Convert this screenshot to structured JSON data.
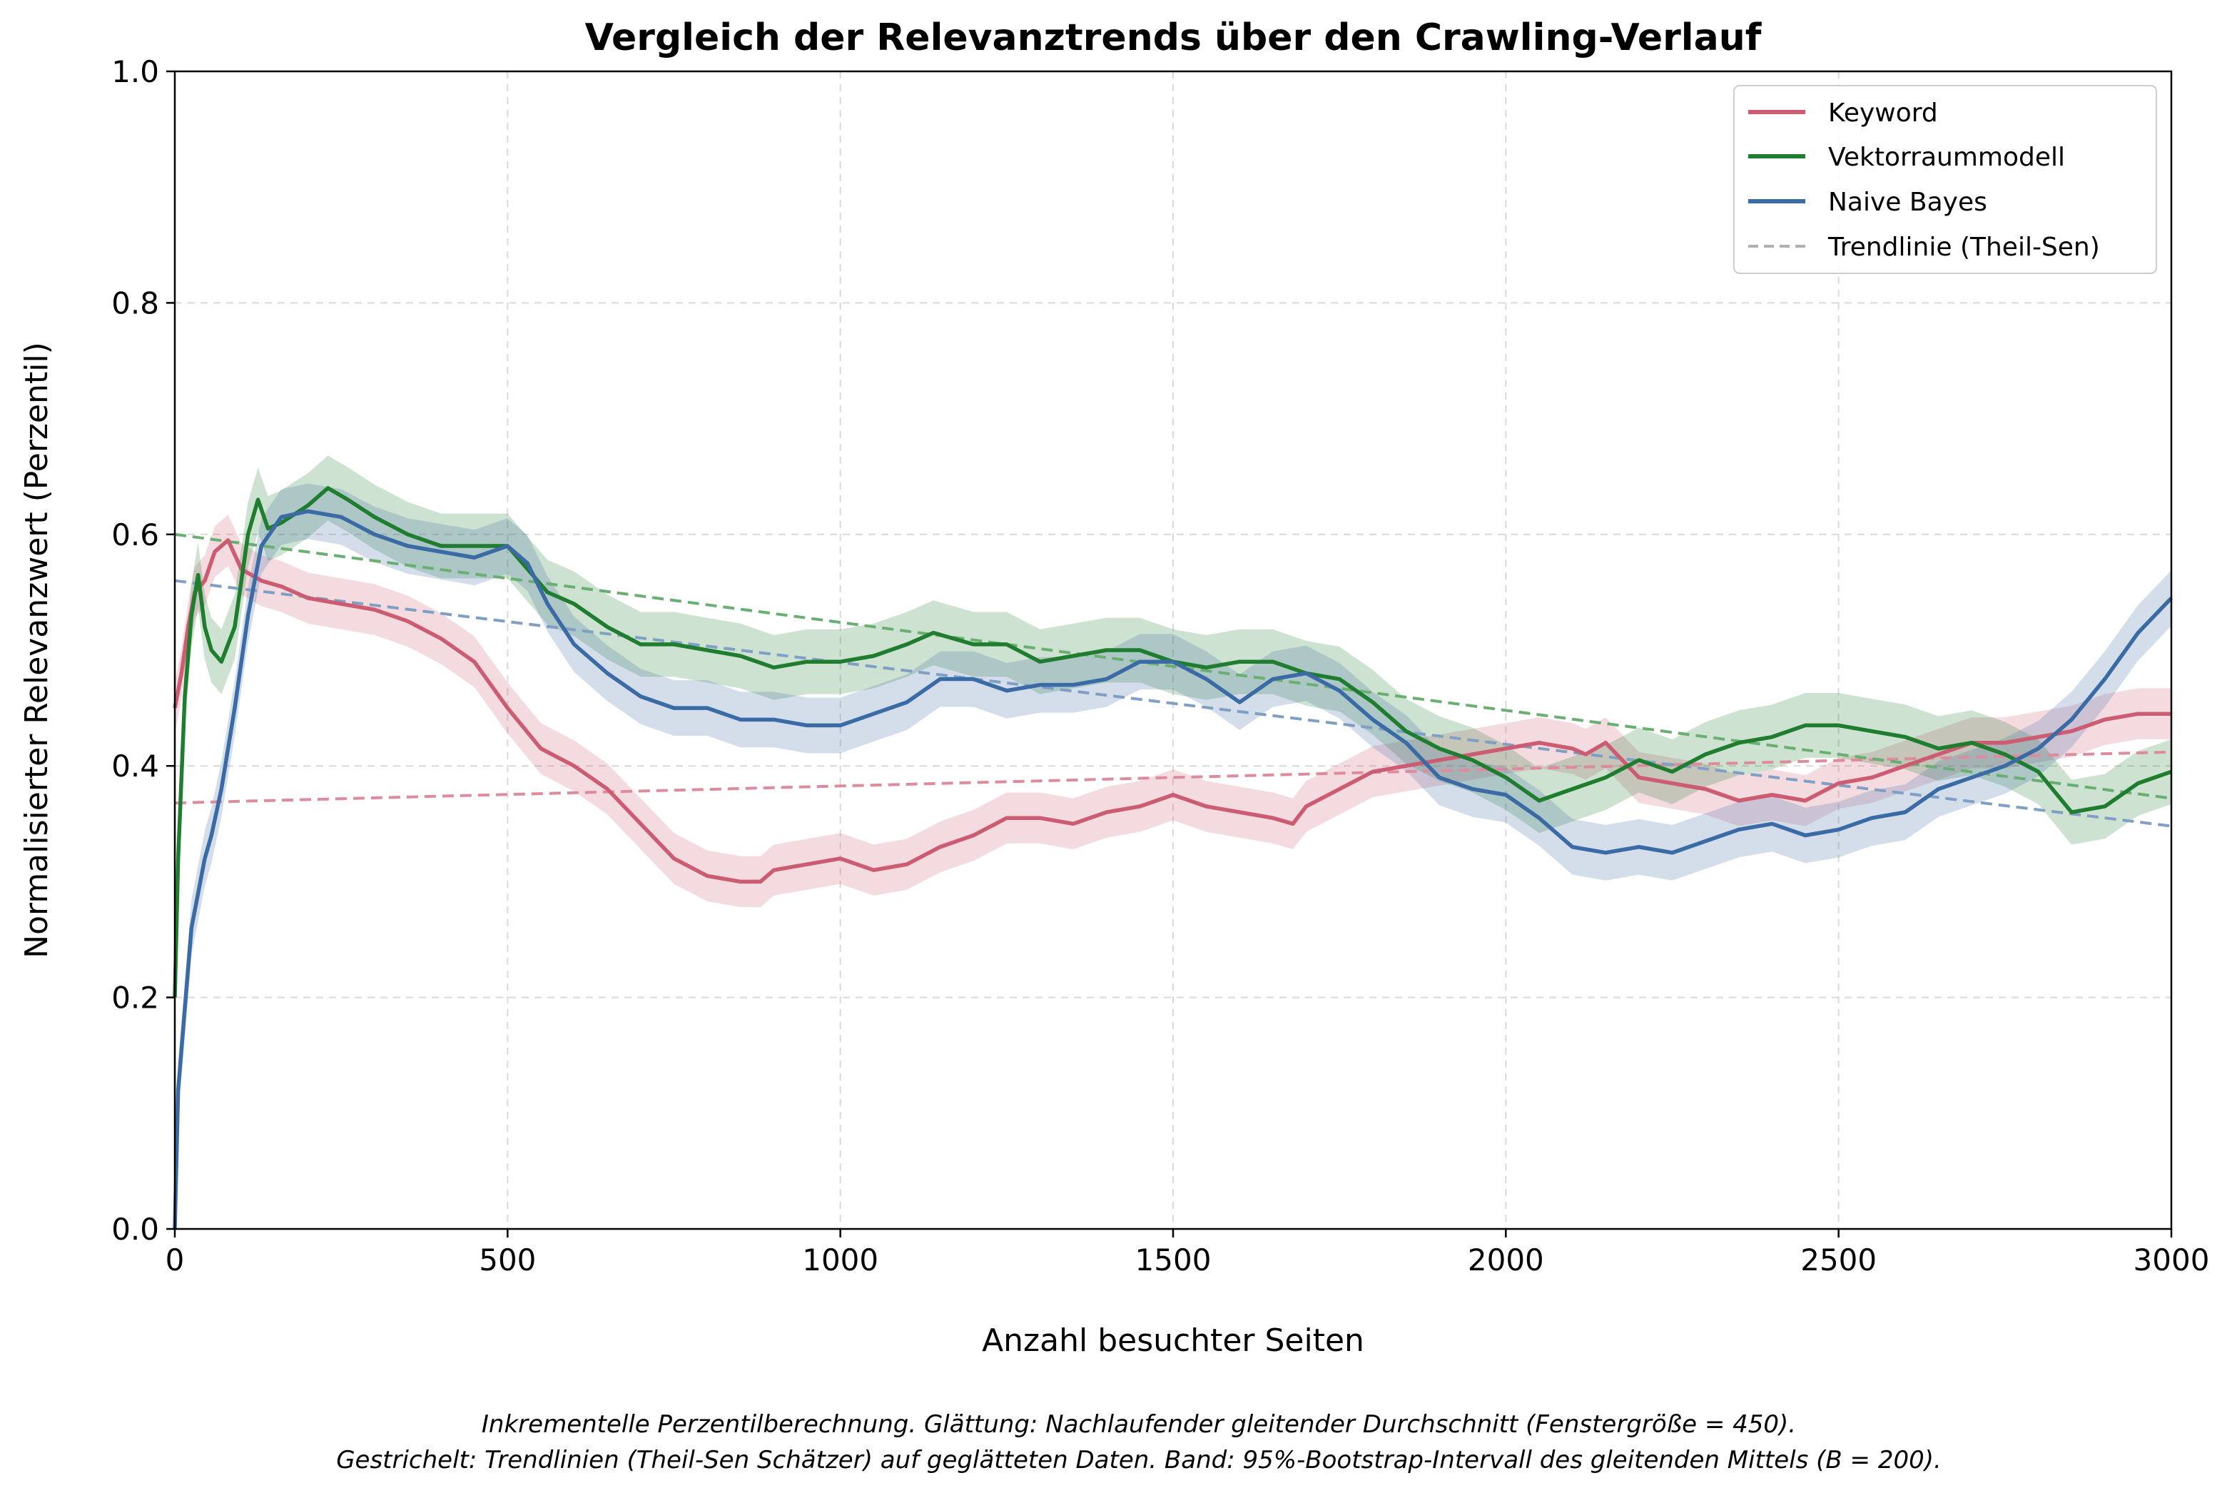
{
  "chart_data": {
    "type": "line",
    "title": "Vergleich der Relevanztrends über den Crawling-Verlauf",
    "xlabel": "Anzahl besuchter Seiten",
    "ylabel": "Normalisierter Relevanzwert (Perzentil)",
    "xlim": [
      0,
      3000
    ],
    "ylim": [
      0,
      1.0
    ],
    "xticks": [
      0,
      500,
      1000,
      1500,
      2000,
      2500,
      3000
    ],
    "xtick_labels": [
      "0",
      "500",
      "1000",
      "1500",
      "2000",
      "2500",
      "3000"
    ],
    "yticks": [
      0,
      0.2,
      0.4,
      0.6,
      0.8,
      1.0
    ],
    "ytick_labels": [
      "0.0",
      "0.2",
      "0.4",
      "0.6",
      "0.8",
      "1.0"
    ],
    "grid": true,
    "legend_position": "top-right",
    "legend": [
      "Keyword",
      "Vektorraummodell",
      "Naive Bayes",
      "Trendlinie (Theil-Sen)"
    ],
    "trend_legend_color": "#b0b0b0",
    "series": [
      {
        "name": "Keyword",
        "color": "#cc5c72",
        "band_halfwidth": 0.022,
        "x": [
          0,
          10,
          20,
          30,
          45,
          60,
          80,
          100,
          130,
          160,
          200,
          250,
          300,
          350,
          400,
          450,
          500,
          550,
          600,
          650,
          700,
          750,
          800,
          850,
          880,
          900,
          950,
          1000,
          1050,
          1100,
          1150,
          1200,
          1250,
          1300,
          1350,
          1400,
          1450,
          1500,
          1550,
          1600,
          1650,
          1680,
          1700,
          1750,
          1800,
          1850,
          1900,
          1950,
          2000,
          2050,
          2100,
          2120,
          2150,
          2200,
          2250,
          2300,
          2350,
          2400,
          2450,
          2500,
          2550,
          2600,
          2650,
          2700,
          2750,
          2800,
          2850,
          2900,
          2950,
          3000
        ],
        "y": [
          0.45,
          0.48,
          0.52,
          0.55,
          0.56,
          0.585,
          0.595,
          0.57,
          0.56,
          0.555,
          0.545,
          0.54,
          0.535,
          0.525,
          0.51,
          0.49,
          0.45,
          0.415,
          0.4,
          0.38,
          0.35,
          0.32,
          0.305,
          0.3,
          0.3,
          0.31,
          0.315,
          0.32,
          0.31,
          0.315,
          0.33,
          0.34,
          0.355,
          0.355,
          0.35,
          0.36,
          0.365,
          0.375,
          0.365,
          0.36,
          0.355,
          0.35,
          0.365,
          0.38,
          0.395,
          0.4,
          0.405,
          0.41,
          0.415,
          0.42,
          0.415,
          0.41,
          0.42,
          0.39,
          0.385,
          0.38,
          0.37,
          0.375,
          0.37,
          0.385,
          0.39,
          0.4,
          0.41,
          0.42,
          0.42,
          0.425,
          0.43,
          0.44,
          0.445,
          0.445
        ]
      },
      {
        "name": "Vektorraummodell",
        "color": "#1e7d2e",
        "band_halfwidth": 0.028,
        "x": [
          0,
          5,
          15,
          25,
          35,
          45,
          55,
          70,
          90,
          110,
          125,
          140,
          160,
          200,
          230,
          260,
          300,
          350,
          400,
          450,
          500,
          530,
          560,
          600,
          650,
          700,
          750,
          800,
          850,
          900,
          950,
          1000,
          1050,
          1100,
          1140,
          1200,
          1250,
          1300,
          1350,
          1400,
          1450,
          1500,
          1550,
          1600,
          1650,
          1700,
          1750,
          1800,
          1850,
          1900,
          1950,
          2000,
          2050,
          2100,
          2150,
          2200,
          2250,
          2300,
          2350,
          2400,
          2450,
          2500,
          2550,
          2600,
          2650,
          2700,
          2750,
          2800,
          2850,
          2900,
          2950,
          3000
        ],
        "y": [
          0.2,
          0.32,
          0.46,
          0.53,
          0.565,
          0.52,
          0.5,
          0.49,
          0.52,
          0.6,
          0.63,
          0.605,
          0.61,
          0.625,
          0.64,
          0.63,
          0.615,
          0.6,
          0.59,
          0.59,
          0.59,
          0.57,
          0.55,
          0.54,
          0.52,
          0.505,
          0.505,
          0.5,
          0.495,
          0.485,
          0.49,
          0.49,
          0.495,
          0.505,
          0.515,
          0.505,
          0.505,
          0.49,
          0.495,
          0.5,
          0.5,
          0.49,
          0.485,
          0.49,
          0.49,
          0.48,
          0.475,
          0.455,
          0.43,
          0.415,
          0.405,
          0.39,
          0.37,
          0.38,
          0.39,
          0.405,
          0.395,
          0.41,
          0.42,
          0.425,
          0.435,
          0.435,
          0.43,
          0.425,
          0.415,
          0.42,
          0.41,
          0.395,
          0.36,
          0.365,
          0.385,
          0.395
        ]
      },
      {
        "name": "Naive Bayes",
        "color": "#3a6ba5",
        "band_halfwidth": 0.024,
        "x": [
          0,
          5,
          15,
          25,
          35,
          45,
          55,
          70,
          90,
          110,
          130,
          160,
          200,
          250,
          300,
          350,
          400,
          450,
          500,
          530,
          560,
          600,
          650,
          700,
          750,
          800,
          850,
          900,
          950,
          1000,
          1050,
          1100,
          1150,
          1200,
          1250,
          1300,
          1350,
          1400,
          1450,
          1500,
          1550,
          1600,
          1650,
          1700,
          1750,
          1800,
          1850,
          1900,
          1950,
          2000,
          2050,
          2100,
          2150,
          2200,
          2250,
          2300,
          2350,
          2400,
          2450,
          2500,
          2550,
          2600,
          2650,
          2700,
          2750,
          2800,
          2850,
          2900,
          2950,
          3000
        ],
        "y": [
          0.0,
          0.12,
          0.19,
          0.26,
          0.29,
          0.32,
          0.34,
          0.38,
          0.45,
          0.53,
          0.59,
          0.615,
          0.62,
          0.615,
          0.6,
          0.59,
          0.585,
          0.58,
          0.59,
          0.575,
          0.54,
          0.505,
          0.48,
          0.46,
          0.45,
          0.45,
          0.44,
          0.44,
          0.435,
          0.435,
          0.445,
          0.455,
          0.475,
          0.475,
          0.465,
          0.47,
          0.47,
          0.475,
          0.49,
          0.49,
          0.475,
          0.455,
          0.475,
          0.48,
          0.465,
          0.44,
          0.42,
          0.39,
          0.38,
          0.375,
          0.355,
          0.33,
          0.325,
          0.33,
          0.325,
          0.335,
          0.345,
          0.35,
          0.34,
          0.345,
          0.355,
          0.36,
          0.38,
          0.39,
          0.4,
          0.415,
          0.44,
          0.475,
          0.515,
          0.545
        ]
      }
    ],
    "trendlines": [
      {
        "series": "Keyword",
        "color": "#dc8c9c",
        "x": [
          0,
          3000
        ],
        "y": [
          0.368,
          0.412
        ]
      },
      {
        "series": "Vektorraummodell",
        "color": "#6aaf72",
        "x": [
          0,
          3000
        ],
        "y": [
          0.6,
          0.372
        ]
      },
      {
        "series": "Naive Bayes",
        "color": "#7f9fc4",
        "x": [
          0,
          3000
        ],
        "y": [
          0.56,
          0.348
        ]
      }
    ],
    "footnote": [
      "Inkrementelle Perzentilberechnung. Glättung: Nachlaufender gleitender Durchschnitt (Fenstergröße = 450).",
      "Gestrichelt: Trendlinien (Theil-Sen Schätzer) auf geglätteten Daten. Band: 95%-Bootstrap-Intervall des gleitenden Mittels (B = 200)."
    ]
  }
}
